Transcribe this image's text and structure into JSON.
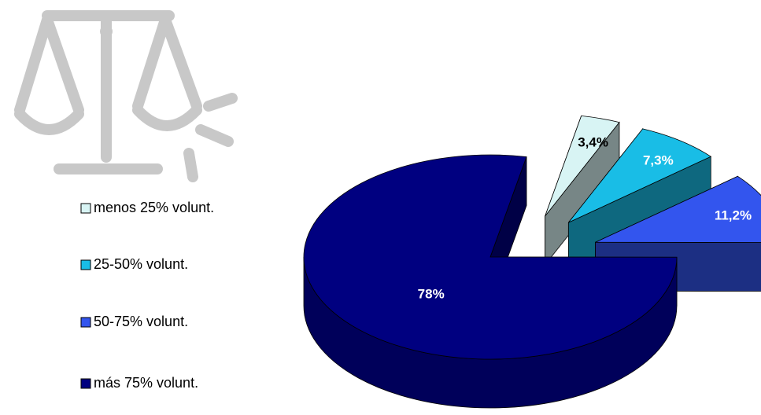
{
  "chart_data": {
    "type": "pie",
    "categories": [
      "menos 25% volunt.",
      "25-50% volunt.",
      "50-75% volunt.",
      "más 75% volunt."
    ],
    "values": [
      3.4,
      7.3,
      11.2,
      78
    ],
    "value_labels": [
      "3,4%",
      "7,3%",
      "11,2%",
      "78%"
    ],
    "colors": [
      "#d8f4f4",
      "#19bde6",
      "#3355ee",
      "#000080"
    ],
    "legend": "left"
  }
}
